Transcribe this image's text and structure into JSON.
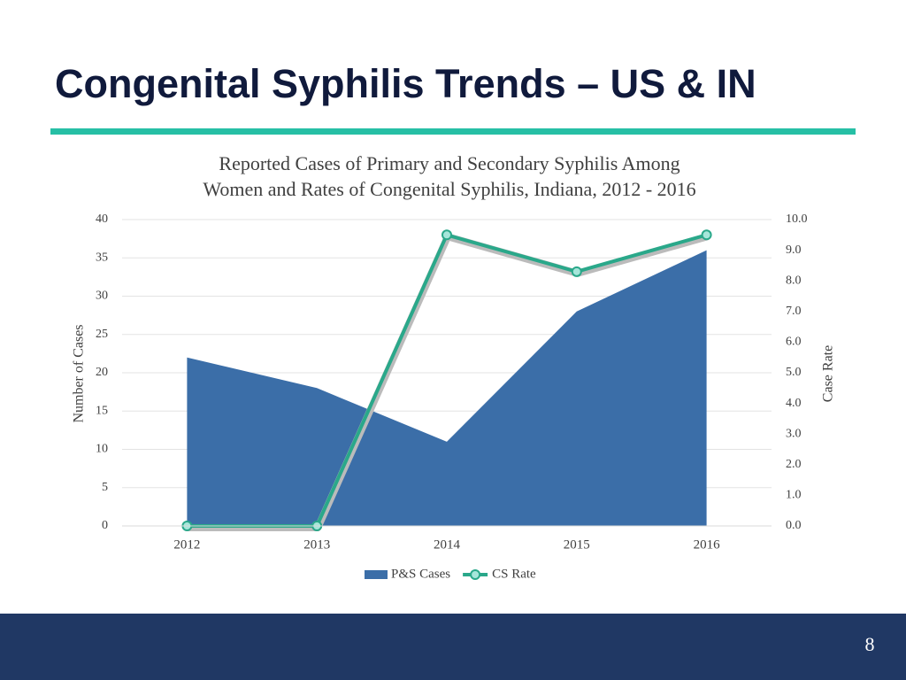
{
  "slide": {
    "title": "Congenital Syphilis Trends – US & IN",
    "page_number": "8"
  },
  "chart_data": {
    "type": "area",
    "title": [
      "Reported Cases of Primary and Secondary Syphilis Among",
      "Women and Rates of Congenital Syphilis, Indiana, 2012 - 2016"
    ],
    "y_label": "Number of Cases",
    "y2_label": "Case Rate",
    "categories": [
      "2012",
      "2013",
      "2014",
      "2015",
      "2016"
    ],
    "series": [
      {
        "name": "P&S Cases",
        "type": "area",
        "color": "#3b6ea8",
        "values": [
          22,
          18,
          11,
          28,
          36
        ]
      },
      {
        "name": "CS Rate",
        "type": "line",
        "axis": "y2",
        "color": "#2aa88a",
        "values": [
          0,
          0,
          9.5,
          8.3,
          9.5
        ]
      }
    ],
    "ylim": [
      0,
      40
    ],
    "yticks": [
      0,
      5,
      10,
      15,
      20,
      25,
      30,
      35,
      40
    ],
    "y2lim": [
      0,
      10
    ],
    "y2ticks": [
      {
        "value": 0,
        "label": "0.0"
      },
      {
        "value": 1,
        "label": "1.0"
      },
      {
        "value": 2,
        "label": "2.0"
      },
      {
        "value": 3,
        "label": "3.0"
      },
      {
        "value": 4,
        "label": "4.0"
      },
      {
        "value": 5,
        "label": "5.0"
      },
      {
        "value": 6,
        "label": "6.0"
      },
      {
        "value": 7,
        "label": "7.0"
      },
      {
        "value": 8,
        "label": "8.0"
      },
      {
        "value": 9,
        "label": "9.0"
      },
      {
        "value": 10,
        "label": "10.0"
      }
    ],
    "grid": true,
    "legend": "bottom"
  }
}
